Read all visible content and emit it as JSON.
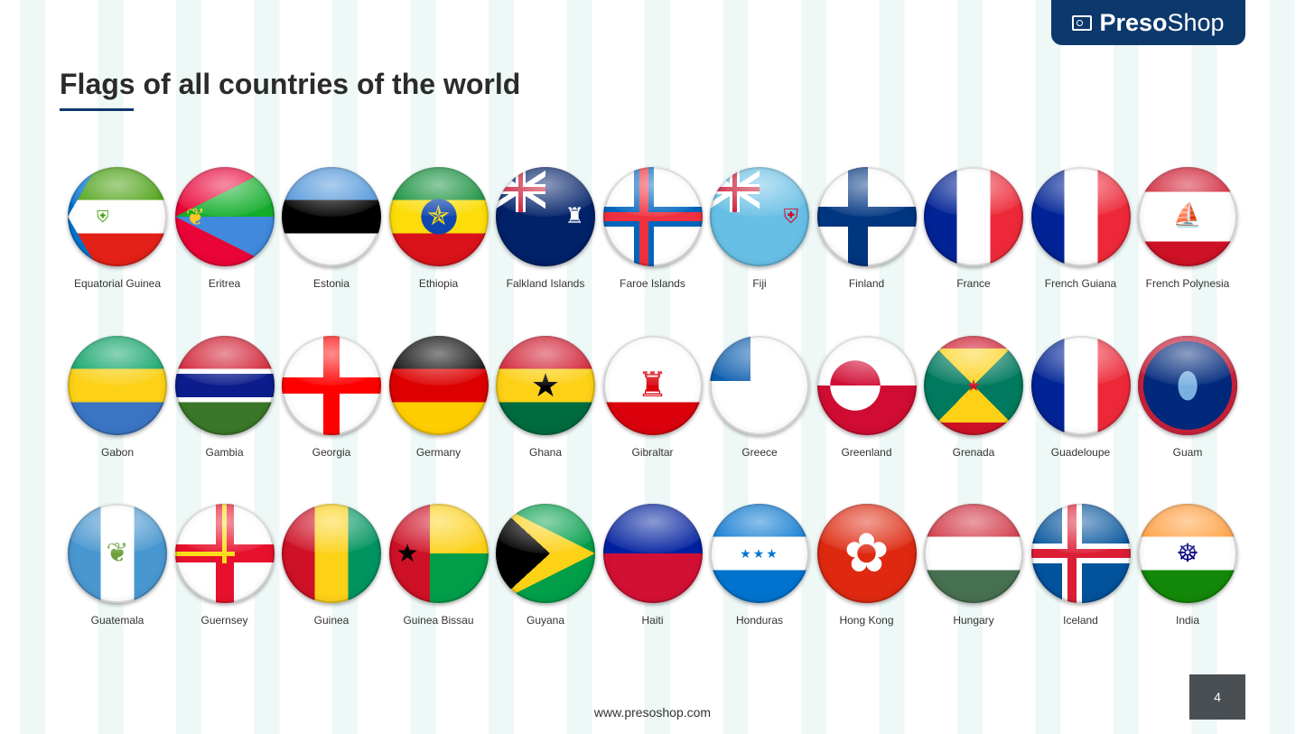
{
  "watermark": {
    "bold": "Preso",
    "light": "Shop"
  },
  "logo": {
    "bold": "Preso",
    "light": "Shop"
  },
  "title": "Flags of all countries of the world",
  "rows": [
    [
      "Equatorial Guinea",
      "Eritrea",
      "Estonia",
      "Ethiopia",
      "Falkland Islands",
      "Faroe Islands",
      "Fiji",
      "Finland",
      "France",
      "French Guiana",
      "French Polynesia"
    ],
    [
      "Gabon",
      "Gambia",
      "Georgia",
      "Germany",
      "Ghana",
      "Gibraltar",
      "Greece",
      "Greenland",
      "Grenada",
      "Guadeloupe",
      "Guam"
    ],
    [
      "Guatemala",
      "Guernsey",
      "Guinea",
      "Guinea Bissau",
      "Guyana",
      "Haiti",
      "Honduras",
      "Hong Kong",
      "Hungary",
      "Iceland",
      "India"
    ]
  ],
  "footer": {
    "url": "www.presoshop.com",
    "page": "4"
  },
  "colors": {
    "brand": "#0c386c",
    "page_box": "#4a4f53"
  }
}
